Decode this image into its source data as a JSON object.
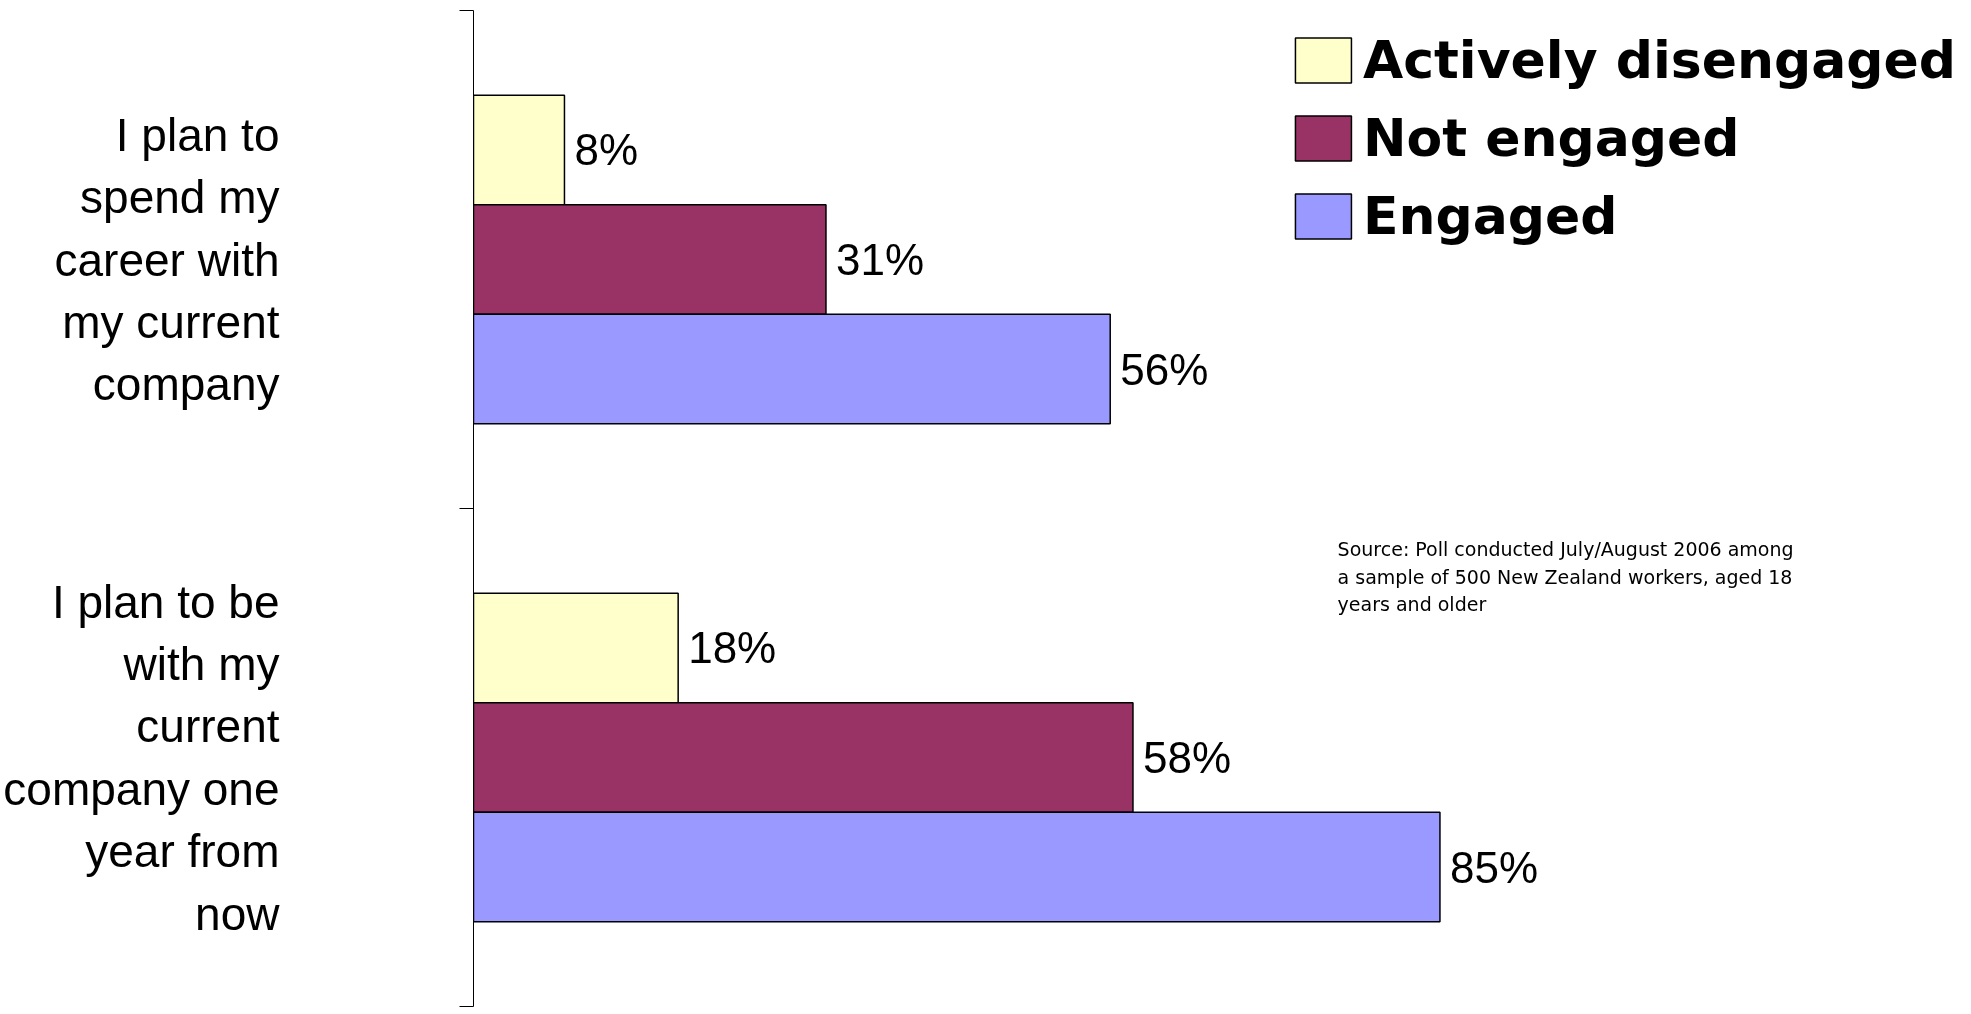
{
  "chart_data": {
    "type": "bar",
    "orientation": "horizontal",
    "categories": [
      "I plan to\nspend my\ncareer with\nmy current\ncompany",
      "I plan to be\nwith my\ncurrent\ncompany one\nyear from\nnow"
    ],
    "series": [
      {
        "name": "Actively disengaged",
        "color": "#ffffcc",
        "values": [
          8,
          18
        ],
        "value_labels": [
          "8%",
          "18%"
        ]
      },
      {
        "name": "Not engaged",
        "color": "#993366",
        "values": [
          31,
          58
        ],
        "value_labels": [
          "31%",
          "58%"
        ]
      },
      {
        "name": "Engaged",
        "color": "#9999ff",
        "values": [
          56,
          85
        ],
        "value_labels": [
          "56%",
          "85%"
        ]
      }
    ],
    "tick_labels": "y",
    "legend": "top right",
    "grid": false,
    "annotations": [
      "Source: Poll conducted July/August 2006 among\n          a sample of 500 New Zealand workers, aged 18\n          years and older"
    ]
  }
}
